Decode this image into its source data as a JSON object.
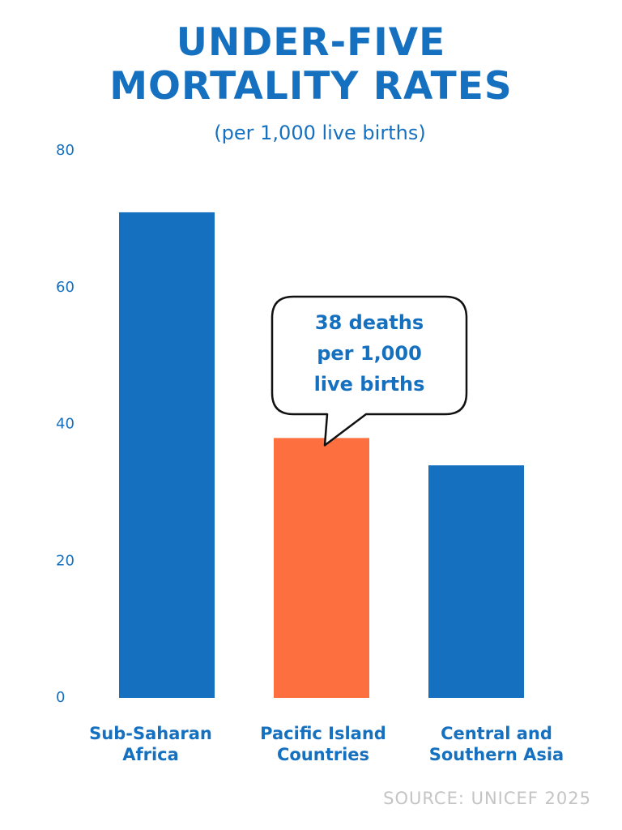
{
  "header": {
    "title_lines": [
      "UNDER-FIVE",
      "MORTALITY RATES"
    ],
    "subtitle": "(per 1,000 live births)"
  },
  "callout": {
    "lines": [
      "38 deaths",
      "per 1,000",
      "live births"
    ]
  },
  "footer": {
    "source": "SOURCE: UNICEF 2025"
  },
  "colors": {
    "primary": "#1570c0",
    "highlight": "#fe6f3f",
    "source_gray": "#c4c4c4"
  },
  "chart_data": {
    "type": "bar",
    "title": "UNDER-FIVE MORTALITY RATES",
    "subtitle": "(per 1,000 live births)",
    "categories": [
      [
        "Sub-Saharan",
        "Africa"
      ],
      [
        "Pacific Island",
        "Countries"
      ],
      [
        "Central and",
        "Southern Asia"
      ]
    ],
    "values": [
      71,
      38,
      34
    ],
    "highlight_index": 1,
    "ylim": [
      0,
      80
    ],
    "yticks": [
      0,
      20,
      40,
      60,
      80
    ],
    "xlabel": "",
    "ylabel": "",
    "grid": false,
    "legend": "none"
  }
}
